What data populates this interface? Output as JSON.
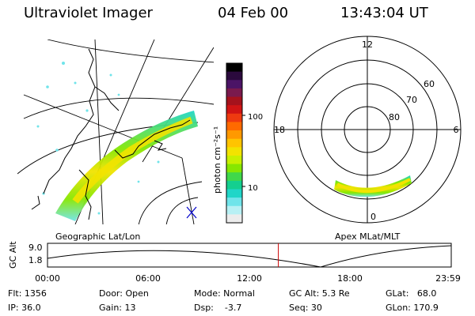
{
  "header": {
    "instrument": "Ultraviolet Imager",
    "date": "04 Feb 00",
    "time": "13:43:04 UT"
  },
  "geo_panel": {
    "label": "Geographic Lat/Lon"
  },
  "colorbar": {
    "unit_label": "photon cm⁻²s⁻¹",
    "ticks": [
      "100",
      "10"
    ],
    "colors": [
      "#000000",
      "#2b0a3d",
      "#4b1466",
      "#7a1a4d",
      "#a5121c",
      "#d01414",
      "#ee3a10",
      "#ff6a00",
      "#ff9900",
      "#ffc400",
      "#f2e300",
      "#c8f000",
      "#86e700",
      "#40d84a",
      "#14cf8f",
      "#20d6c8",
      "#70e4ea",
      "#b8f0f4",
      "#ececec"
    ]
  },
  "polar_panel": {
    "label": "Apex MLat/MLT",
    "mlt_labels": [
      "12",
      "18",
      "6",
      "0"
    ],
    "lat_labels": [
      "60",
      "70",
      "80"
    ]
  },
  "altitude_plot": {
    "ylabel": "GC Alt",
    "y_ticks": [
      "9.0",
      "1.8"
    ],
    "x_ticks": [
      "00:00",
      "06:00",
      "12:00",
      "18:00",
      "23:59"
    ],
    "current_time_hours": 13.72
  },
  "footer": {
    "flt": "Flt: 1356",
    "ip": "IP: 36.0",
    "door": "Door: Open",
    "gain": "Gain: 13",
    "mode": "Mode: Normal",
    "dsp": "Dsp:    -3.7",
    "gc_alt": "GC Alt: 5.3 Re",
    "seq": "Seq: 30",
    "glat": "GLat:   68.0",
    "glon": "GLon: 170.9"
  }
}
